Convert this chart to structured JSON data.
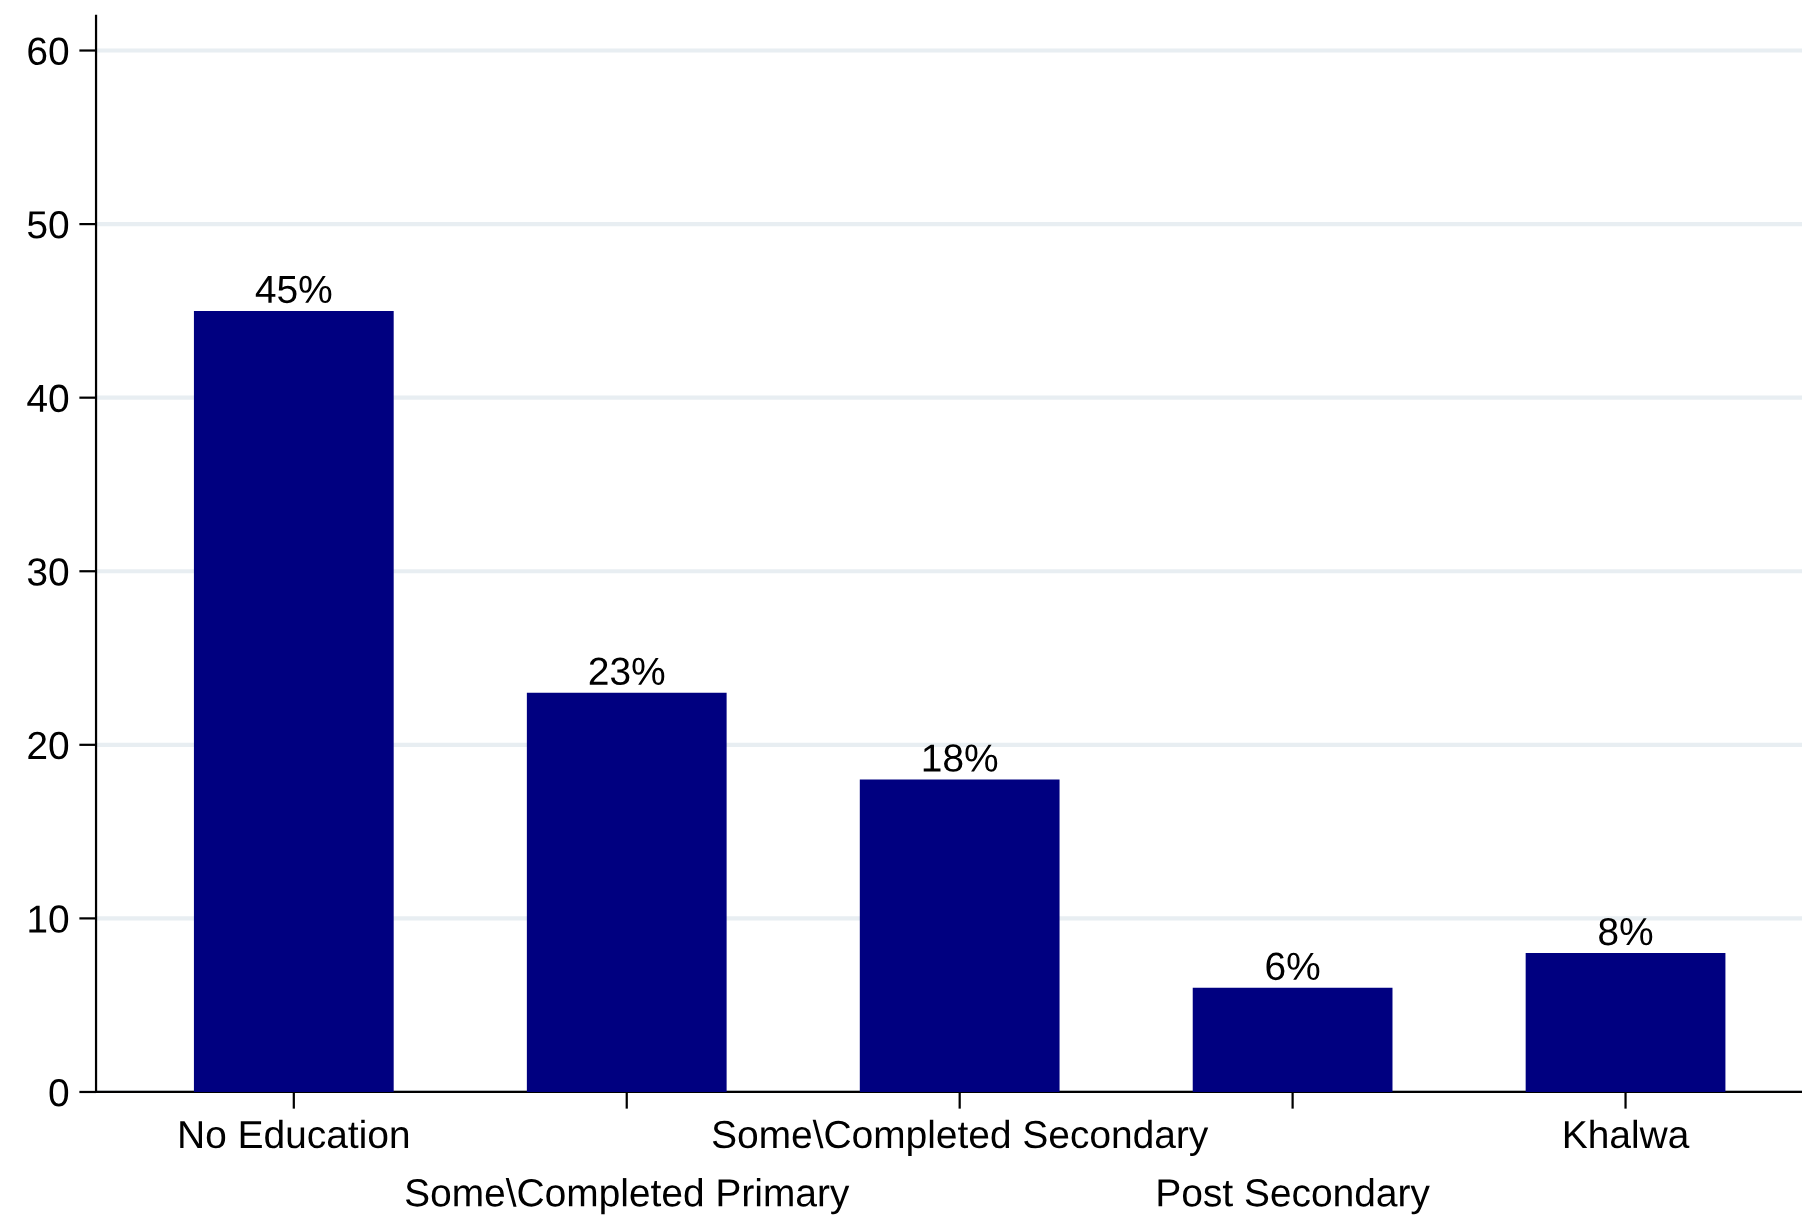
{
  "chart_data": {
    "type": "bar",
    "categories": [
      "No Education",
      "Some\\Completed Primary",
      "Some\\Completed Secondary",
      "Post Secondary",
      "Khalwa"
    ],
    "values": [
      45,
      23,
      18,
      6,
      8
    ],
    "value_labels": [
      "45%",
      "23%",
      "18%",
      "6%",
      "8%"
    ],
    "color": "#000080",
    "ylim": [
      0,
      62
    ],
    "yticks": [
      0,
      10,
      20,
      30,
      40,
      50,
      60
    ],
    "grid": "y"
  }
}
